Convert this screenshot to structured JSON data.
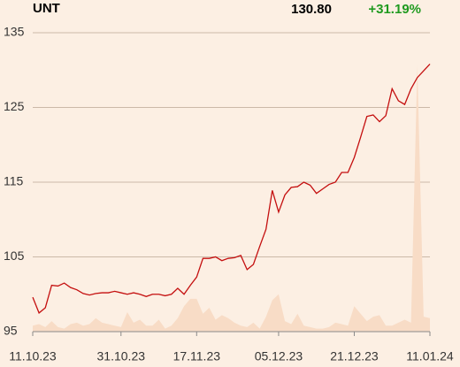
{
  "chart_data": {
    "type": "line",
    "title": "UNT",
    "price": "130.80",
    "change": "+31.19%",
    "categories": [
      "11.10.23",
      null,
      null,
      null,
      null,
      null,
      null,
      null,
      null,
      null,
      null,
      null,
      null,
      null,
      "31.10.23",
      null,
      null,
      null,
      null,
      null,
      null,
      null,
      null,
      null,
      null,
      null,
      "17.11.23",
      null,
      null,
      null,
      null,
      null,
      null,
      null,
      null,
      null,
      null,
      null,
      null,
      "05.12.23",
      null,
      null,
      null,
      null,
      null,
      null,
      null,
      null,
      null,
      null,
      null,
      "21.12.23",
      null,
      null,
      null,
      null,
      null,
      null,
      null,
      null,
      null,
      null,
      null,
      "11.01.24"
    ],
    "series": [
      {
        "name": "UNT",
        "color": "#c40f0f",
        "values": [
          99.6,
          97.5,
          98.2,
          101.2,
          101.1,
          101.5,
          100.9,
          100.6,
          100.1,
          99.9,
          100.1,
          100.2,
          100.2,
          100.4,
          100.2,
          100.0,
          100.2,
          100.0,
          99.7,
          100.0,
          100.0,
          99.8,
          100.0,
          100.8,
          100.0,
          101.2,
          102.3,
          104.8,
          104.8,
          105.0,
          104.5,
          104.8,
          104.9,
          105.2,
          103.3,
          104.0,
          106.4,
          108.7,
          113.9,
          111.0,
          113.3,
          114.3,
          114.4,
          115.0,
          114.6,
          113.5,
          114.1,
          114.7,
          115.0,
          116.3,
          116.3,
          118.3,
          121.0,
          123.8,
          124.0,
          123.1,
          123.9,
          127.5,
          125.9,
          125.4,
          127.5,
          129.0,
          129.9,
          130.8
        ]
      },
      {
        "name": "Volume",
        "color": "#f8dcc6",
        "axis": "y2",
        "values": [
          2,
          2.5,
          1.5,
          3.5,
          1.5,
          1,
          2.5,
          3,
          2,
          2.5,
          4.5,
          3,
          2.5,
          2,
          1.5,
          6.5,
          3,
          4,
          2,
          2,
          4,
          1,
          2,
          4.5,
          8.5,
          11,
          11,
          6,
          8,
          4,
          5.5,
          4.5,
          3,
          2,
          1.5,
          3,
          1,
          5,
          10.5,
          12.5,
          3.5,
          2.5,
          6,
          2,
          1.5,
          1,
          1,
          1.5,
          3,
          2.5,
          2,
          8.5,
          6,
          3.5,
          5,
          5.5,
          2,
          2,
          3,
          4,
          3,
          89,
          5,
          4.5
        ]
      }
    ],
    "ylim": [
      95,
      135
    ],
    "yticks": [
      95,
      105,
      115,
      125,
      135
    ],
    "y2lim": [
      0,
      100
    ],
    "grid": true
  }
}
